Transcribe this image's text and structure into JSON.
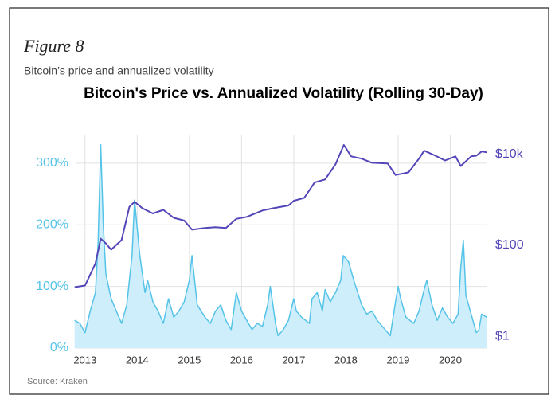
{
  "figure_label": "Figure 8",
  "subtitle": "Bitcoin’s price and annualized volatility",
  "source": "Source: Kraken",
  "chart_data": {
    "type": "line",
    "title": "Bitcoin's Price vs. Annualized Volatility (Rolling 30-Day)",
    "xlim": [
      2012.82,
      2020.71
    ],
    "xticks": [
      2013,
      2014,
      2015,
      2016,
      2017,
      2018,
      2019,
      2020
    ],
    "ylim": [
      0,
      345
    ],
    "yticks": [
      {
        "value": 0,
        "label": "0%"
      },
      {
        "value": 100,
        "label": "100%"
      },
      {
        "value": 200,
        "label": "200%"
      },
      {
        "value": 300,
        "label": "300%"
      }
    ],
    "y2lim": [
      0.55,
      26000
    ],
    "y2log": true,
    "y2ticks": [
      {
        "value": 1,
        "label": "$1"
      },
      {
        "value": 100,
        "label": "$100"
      },
      {
        "value": 10000,
        "label": "$10k"
      }
    ],
    "grid": true,
    "series": [
      {
        "color": "#56c3e8",
        "fill": "#cdeefa",
        "axis": "y",
        "x": [
          2012.8,
          2012.9,
          2013.0,
          2013.1,
          2013.2,
          2013.25,
          2013.3,
          2013.35,
          2013.4,
          2013.5,
          2013.6,
          2013.7,
          2013.8,
          2013.9,
          2013.95,
          2014.05,
          2014.15,
          2014.2,
          2014.3,
          2014.4,
          2014.5,
          2014.6,
          2014.7,
          2014.8,
          2014.9,
          2015.0,
          2015.05,
          2015.15,
          2015.3,
          2015.4,
          2015.5,
          2015.6,
          2015.7,
          2015.8,
          2015.9,
          2016.0,
          2016.1,
          2016.2,
          2016.3,
          2016.4,
          2016.5,
          2016.55,
          2016.65,
          2016.7,
          2016.8,
          2016.9,
          2017.0,
          2017.05,
          2017.15,
          2017.3,
          2017.35,
          2017.45,
          2017.55,
          2017.6,
          2017.7,
          2017.8,
          2017.9,
          2017.95,
          2018.05,
          2018.15,
          2018.3,
          2018.4,
          2018.5,
          2018.6,
          2018.75,
          2018.85,
          2018.95,
          2019.0,
          2019.05,
          2019.15,
          2019.3,
          2019.4,
          2019.5,
          2019.55,
          2019.65,
          2019.75,
          2019.85,
          2019.95,
          2020.05,
          2020.15,
          2020.2,
          2020.25,
          2020.3,
          2020.4,
          2020.5,
          2020.55,
          2020.6,
          2020.7
        ],
        "values": [
          45,
          40,
          25,
          60,
          90,
          170,
          330,
          200,
          120,
          80,
          60,
          40,
          70,
          150,
          240,
          150,
          90,
          110,
          75,
          60,
          40,
          80,
          50,
          60,
          75,
          110,
          150,
          70,
          50,
          40,
          60,
          70,
          45,
          30,
          90,
          60,
          45,
          30,
          40,
          35,
          70,
          100,
          40,
          20,
          30,
          45,
          80,
          60,
          50,
          40,
          80,
          90,
          60,
          95,
          75,
          90,
          110,
          150,
          140,
          110,
          70,
          55,
          60,
          45,
          30,
          20,
          75,
          100,
          80,
          50,
          40,
          60,
          95,
          110,
          70,
          45,
          65,
          50,
          40,
          55,
          130,
          175,
          85,
          55,
          25,
          30,
          55,
          50
        ]
      },
      {
        "color": "#5346b8",
        "axis": "y2",
        "x": [
          2012.8,
          2013.0,
          2013.2,
          2013.3,
          2013.4,
          2013.5,
          2013.7,
          2013.85,
          2013.95,
          2014.1,
          2014.3,
          2014.5,
          2014.7,
          2014.9,
          2015.05,
          2015.3,
          2015.5,
          2015.7,
          2015.9,
          2016.1,
          2016.4,
          2016.6,
          2016.9,
          2017.0,
          2017.2,
          2017.4,
          2017.6,
          2017.8,
          2017.96,
          2018.1,
          2018.3,
          2018.5,
          2018.8,
          2018.95,
          2019.2,
          2019.4,
          2019.5,
          2019.7,
          2019.9,
          2020.1,
          2020.2,
          2020.4,
          2020.5,
          2020.6,
          2020.7
        ],
        "values": [
          12,
          13,
          40,
          140,
          110,
          80,
          130,
          700,
          900,
          650,
          500,
          600,
          400,
          350,
          220,
          240,
          250,
          240,
          380,
          420,
          580,
          650,
          750,
          950,
          1100,
          2400,
          2800,
          6000,
          16000,
          9000,
          8000,
          6500,
          6300,
          3500,
          4000,
          8000,
          12000,
          9500,
          7300,
          9000,
          5500,
          9000,
          9300,
          11500,
          11000
        ]
      }
    ]
  }
}
